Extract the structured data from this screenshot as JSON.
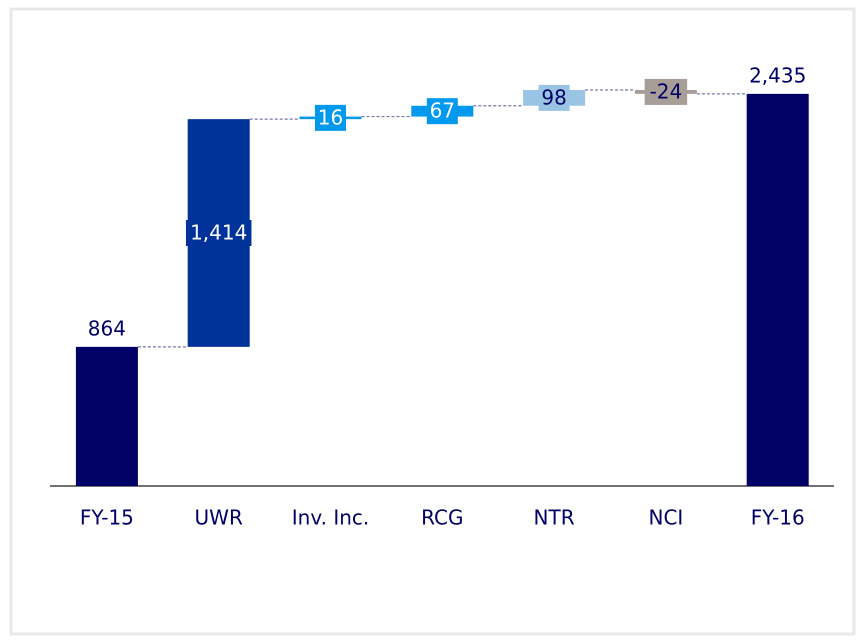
{
  "chart_data": {
    "type": "waterfall",
    "categories": [
      "FY-15",
      "UWR",
      "Inv. Inc.",
      "RCG",
      "NTR",
      "NCI",
      "FY-16"
    ],
    "values": [
      864,
      1414,
      16,
      67,
      98,
      -24,
      2435
    ],
    "value_labels": [
      "864",
      "1,414",
      "16",
      "67",
      "98",
      "-24",
      "2,435"
    ],
    "measure": [
      "absolute",
      "relative",
      "relative",
      "relative",
      "relative",
      "relative",
      "total"
    ],
    "colors": [
      "#000066",
      "#003399",
      "#0099ee",
      "#0099ee",
      "#99c4e4",
      "#a89e98",
      "#000066"
    ],
    "label_colors": [
      "#000066",
      "#ffffff",
      "#ffffff",
      "#ffffff",
      "#000066",
      "#000066",
      "#000066"
    ]
  }
}
